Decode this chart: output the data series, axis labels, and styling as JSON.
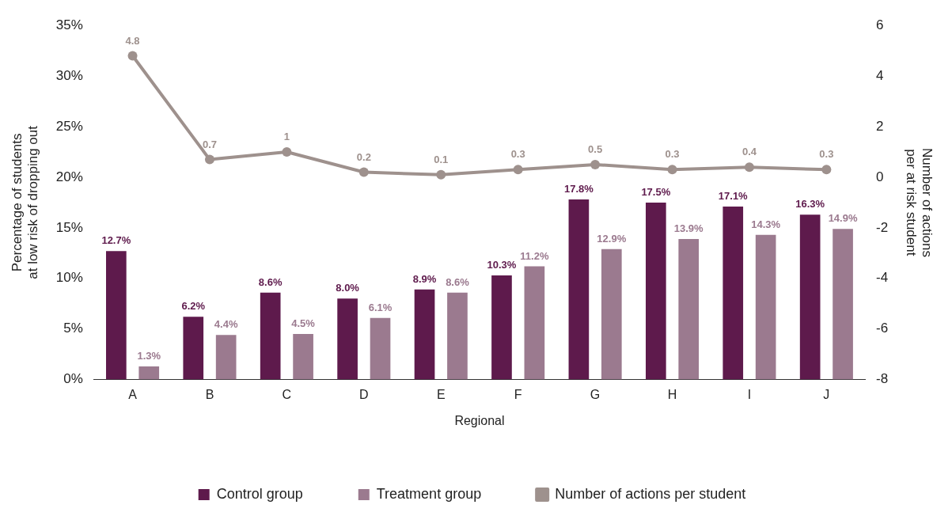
{
  "chart_data": {
    "type": "bar",
    "xlabel": "Regional",
    "ylabel": "Percentage of students\nat low risk of dropping out",
    "y2label": "Number of actions\nper at risk student",
    "categories": [
      "A",
      "B",
      "C",
      "D",
      "E",
      "F",
      "G",
      "H",
      "I",
      "J"
    ],
    "series": [
      {
        "name": "Control group",
        "color": "#5e1a4c",
        "values": [
          12.7,
          6.2,
          8.6,
          8.0,
          8.9,
          10.3,
          17.8,
          17.5,
          17.1,
          16.3
        ],
        "value_labels": [
          "12.7%",
          "6.2%",
          "8.6%",
          "8.0%",
          "8.9%",
          "10.3%",
          "17.8%",
          "17.5%",
          "17.1%",
          "16.3%"
        ]
      },
      {
        "name": "Treatment group",
        "color": "#9b7a8f",
        "values": [
          1.3,
          4.4,
          4.5,
          6.1,
          8.6,
          11.2,
          12.9,
          13.9,
          14.3,
          14.9
        ],
        "value_labels": [
          "1.3%",
          "4.4%",
          "4.5%",
          "6.1%",
          "8.6%",
          "11.2%",
          "12.9%",
          "13.9%",
          "14.3%",
          "14.9%"
        ]
      },
      {
        "name": "Number of actions per student",
        "type": "line",
        "axis": "y2",
        "color": "#9e918d",
        "marker": "circle",
        "values": [
          4.8,
          0.7,
          1,
          0.2,
          0.1,
          0.3,
          0.5,
          0.3,
          0.4,
          0.3
        ],
        "value_labels": [
          "4.8",
          "0.7",
          "1",
          "0.2",
          "0.1",
          "0.3",
          "0.5",
          "0.3",
          "0.4",
          "0.3"
        ]
      }
    ],
    "ylim": [
      0,
      35
    ],
    "yticks": [
      {
        "value": 0,
        "label": "0%"
      },
      {
        "value": 5,
        "label": "5%"
      },
      {
        "value": 10,
        "label": "10%"
      },
      {
        "value": 15,
        "label": "15%"
      },
      {
        "value": 20,
        "label": "20%"
      },
      {
        "value": 25,
        "label": "25%"
      },
      {
        "value": 30,
        "label": "30%"
      },
      {
        "value": 35,
        "label": "35%"
      }
    ],
    "y2lim": [
      -8,
      6
    ],
    "y2ticks": [
      -8,
      -6,
      -4,
      -2,
      0,
      2,
      4,
      6
    ],
    "grid": false,
    "legend": "bottom"
  }
}
